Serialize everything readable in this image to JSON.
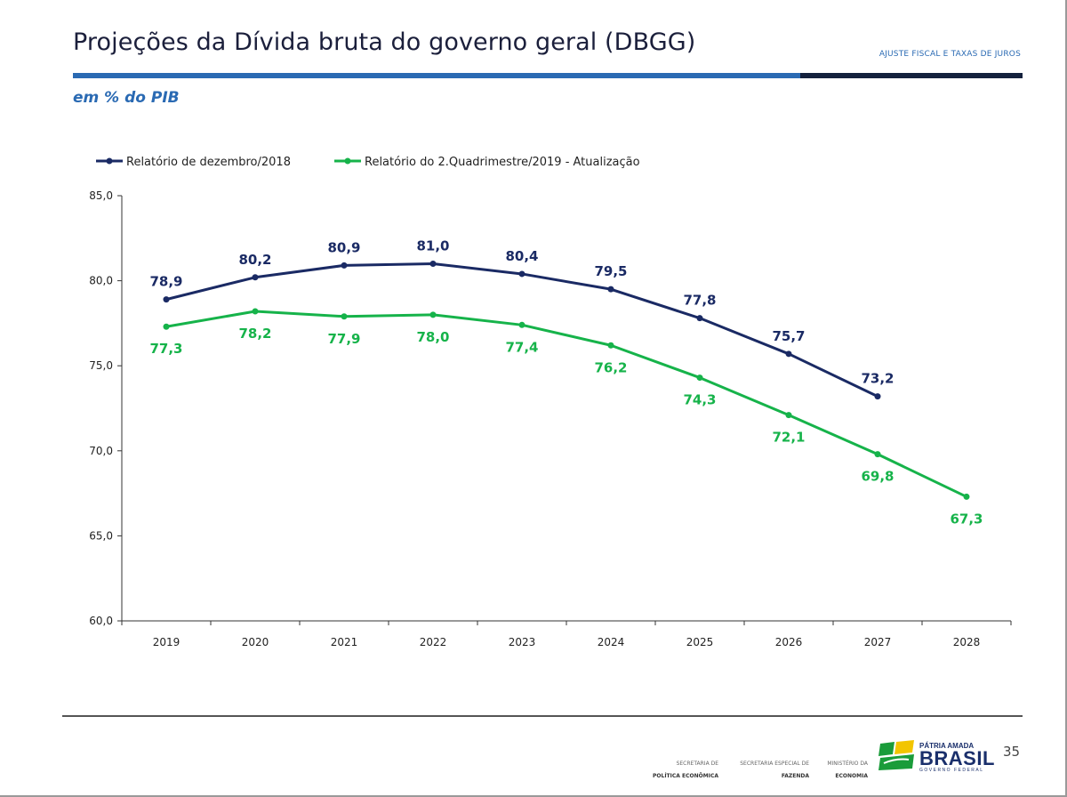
{
  "header": {
    "title": "Projeções da Dívida bruta do governo geral (DBGG)",
    "tag": "AJUSTE FISCAL E TAXAS DE JUROS",
    "subtitle": "em % do PIB"
  },
  "colors": {
    "series_dark": "#1a2a64",
    "series_green": "#16b34a",
    "accent_blue": "#2a6ab3",
    "accent_dark": "#14213d",
    "axis": "#333333"
  },
  "chart_data": {
    "type": "line",
    "title": "Projeções da Dívida bruta do governo geral (DBGG)",
    "ylabel": "em % do PIB",
    "xlabel": "",
    "categories": [
      "2019",
      "2020",
      "2021",
      "2022",
      "2023",
      "2024",
      "2025",
      "2026",
      "2027",
      "2028"
    ],
    "ylim": [
      60,
      85
    ],
    "yticks": [
      "60,0",
      "65,0",
      "70,0",
      "75,0",
      "80,0",
      "85,0"
    ],
    "ytick_values": [
      60,
      65,
      70,
      75,
      80,
      85
    ],
    "legend_position": "top-left",
    "grid": false,
    "series": [
      {
        "name": "Relatório de dezembro/2018",
        "color": "#1a2a64",
        "values": [
          78.9,
          80.2,
          80.9,
          81.0,
          80.4,
          79.5,
          77.8,
          75.7,
          73.2,
          null
        ],
        "labels": [
          "78,9",
          "80,2",
          "80,9",
          "81,0",
          "80,4",
          "79,5",
          "77,8",
          "75,7",
          "73,2",
          null
        ],
        "label_position": "above"
      },
      {
        "name": "Relatório do 2.Quadrimestre/2019 - Atualização",
        "color": "#16b34a",
        "values": [
          77.3,
          78.2,
          77.9,
          78.0,
          77.4,
          76.2,
          74.3,
          72.1,
          69.8,
          67.3
        ],
        "labels": [
          "77,3",
          "78,2",
          "77,9",
          "78,0",
          "77,4",
          "76,2",
          "74,3",
          "72,1",
          "69,8",
          "67,3"
        ],
        "label_position": "below"
      }
    ]
  },
  "footer": {
    "org1_line1": "SECRETARIA DE",
    "org1_line2": "POLÍTICA ECONÔMICA",
    "org2_line1": "SECRETARIA ESPECIAL DE",
    "org2_line2": "FAZENDA",
    "org3_line1": "MINISTÉRIO DA",
    "org3_line2": "ECONOMIA",
    "brand_top": "PÁTRIA AMADA",
    "brand_main": "BRASIL",
    "brand_sub": "GOVERNO FEDERAL",
    "page_number": "35"
  }
}
